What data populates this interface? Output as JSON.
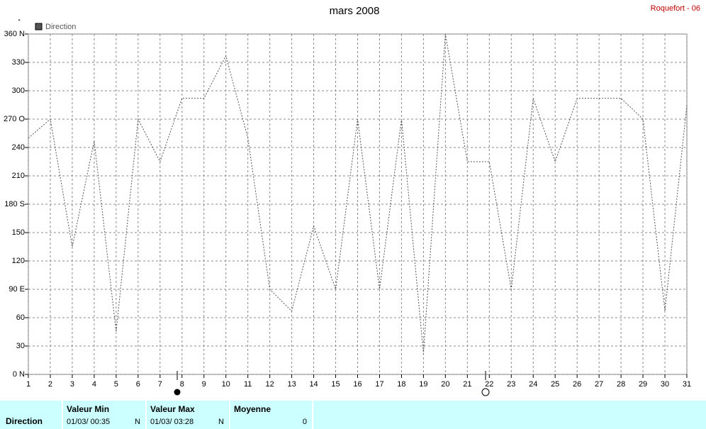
{
  "chart_data": {
    "type": "line",
    "title": "mars 2008",
    "station": "Roquefort - 06",
    "y_label": "°",
    "x": [
      1,
      2,
      3,
      4,
      5,
      6,
      7,
      8,
      9,
      10,
      11,
      12,
      13,
      14,
      15,
      16,
      17,
      18,
      19,
      20,
      21,
      22,
      23,
      24,
      25,
      26,
      27,
      28,
      29,
      30,
      31
    ],
    "series": [
      {
        "name": "Direction",
        "color": "#555555",
        "values": [
          250,
          270,
          135,
          247,
          45,
          270,
          225,
          292,
          292,
          337,
          250,
          90,
          67,
          157,
          90,
          270,
          90,
          270,
          22,
          360,
          225,
          225,
          90,
          292,
          225,
          292,
          292,
          292,
          270,
          67,
          285
        ]
      }
    ],
    "xlim": [
      1,
      31
    ],
    "xticks": [
      1,
      2,
      3,
      4,
      5,
      6,
      7,
      8,
      9,
      10,
      11,
      12,
      13,
      14,
      15,
      16,
      17,
      18,
      19,
      20,
      21,
      22,
      23,
      24,
      25,
      26,
      27,
      28,
      29,
      30,
      31
    ],
    "ylim": [
      0,
      360
    ],
    "yticks": [
      {
        "value": 0,
        "label": "0 N"
      },
      30,
      60,
      {
        "value": 90,
        "label": "90 E"
      },
      120,
      150,
      {
        "value": 180,
        "label": "180 S"
      },
      210,
      240,
      {
        "value": 270,
        "label": "270 O"
      },
      300,
      330,
      {
        "value": 360,
        "label": "360 N"
      }
    ],
    "grid": true
  },
  "summary": {
    "row_label": "Direction",
    "min": {
      "label": "Valeur Min",
      "date": "01/03/ 00:35",
      "dir": "N"
    },
    "max": {
      "label": "Valeur Max",
      "date": "01/03/ 03:28",
      "dir": "N"
    },
    "mean": {
      "label": "Moyenne",
      "value": 0
    }
  }
}
